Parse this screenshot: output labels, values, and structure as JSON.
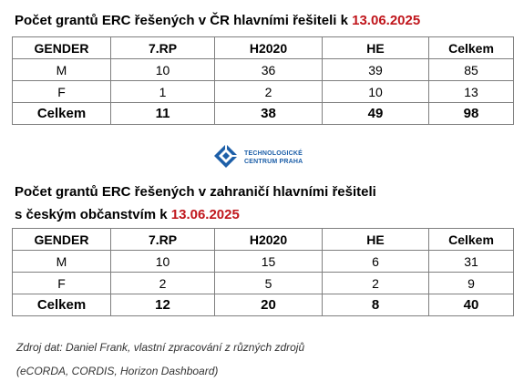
{
  "table1": {
    "title": "Počet grantů ERC řešených v ČR hlavními řešiteli k ",
    "date": "13.06.2025",
    "headers": [
      "GENDER",
      "7.RP",
      "H2020",
      "HE",
      "Celkem"
    ],
    "rows": [
      [
        "M",
        "10",
        "36",
        "39",
        "85"
      ],
      [
        "F",
        "1",
        "2",
        "10",
        "13"
      ]
    ],
    "total": [
      "Celkem",
      "11",
      "38",
      "49",
      "98"
    ]
  },
  "logo": {
    "line1": "TECHNOLOGICKÉ",
    "line2": "CENTRUM PRAHA",
    "icon": "tc-logo-icon",
    "color": "#1d5fa8"
  },
  "table2": {
    "title_line1": "Počet grantů ERC řešených v zahraničí hlavními řešiteli",
    "title_line2": "s českým občanstvím k ",
    "date": "13.06.2025",
    "headers": [
      "GENDER",
      "7.RP",
      "H2020",
      "HE",
      "Celkem"
    ],
    "rows": [
      [
        "M",
        "10",
        "15",
        "6",
        "31"
      ],
      [
        "F",
        "2",
        "5",
        "2",
        "9"
      ]
    ],
    "total": [
      "Celkem",
      "12",
      "20",
      "8",
      "40"
    ]
  },
  "source": {
    "line1": "Zdroj dat: Daniel Frank, vlastní zpracování z různých zdrojů",
    "line2": "(eCORDA, CORDIS, Horizon Dashboard)"
  },
  "colors": {
    "date": "#c0161c",
    "border": "#7f7f7f"
  }
}
